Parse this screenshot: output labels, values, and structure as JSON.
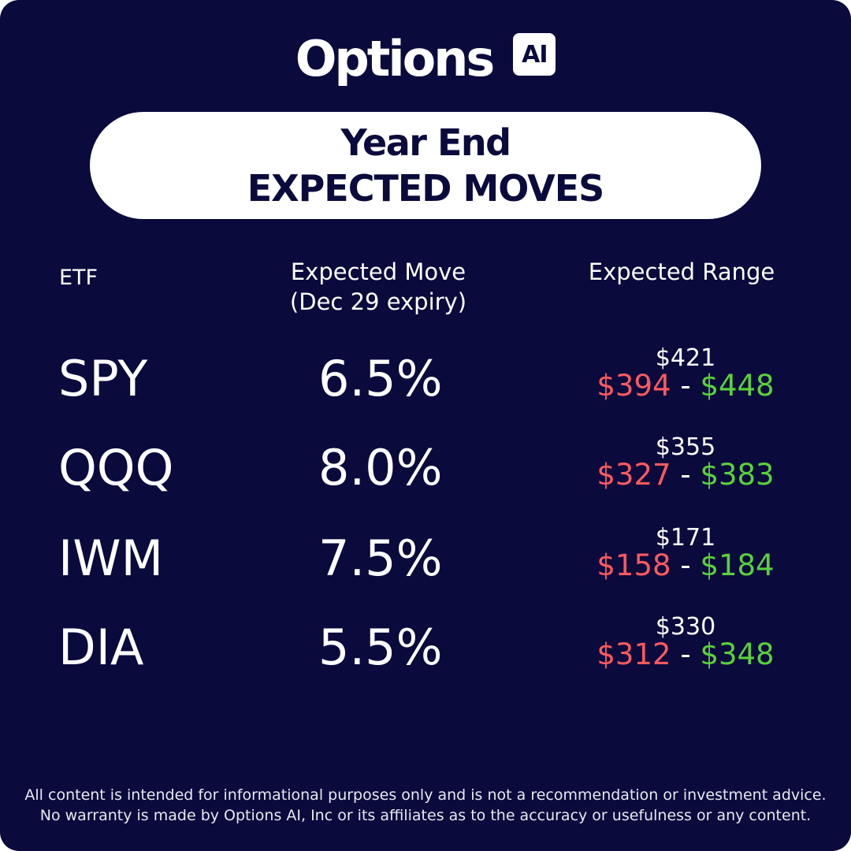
{
  "brand": {
    "logo_word": "Options",
    "logo_badge": "AI"
  },
  "title": {
    "line1": "Year End",
    "line2": "EXPECTED MOVES"
  },
  "headers": {
    "etf": "ETF",
    "move_line1": "Expected Move",
    "move_line2": "(Dec 29 expiry)",
    "range": "Expected Range"
  },
  "rows": [
    {
      "ticker": "SPY",
      "move": "6.5%",
      "price": "$421",
      "low": "$394",
      "sep": "-",
      "high": "$448"
    },
    {
      "ticker": "QQQ",
      "move": "8.0%",
      "price": "$355",
      "low": "$327",
      "sep": "-",
      "high": "$383"
    },
    {
      "ticker": "IWM",
      "move": "7.5%",
      "price": "$171",
      "low": "$158",
      "sep": "-",
      "high": "$184"
    },
    {
      "ticker": "DIA",
      "move": "5.5%",
      "price": "$330",
      "low": "$312",
      "sep": "-",
      "high": "$348"
    }
  ],
  "disclaimer": {
    "line1": "All content is intended for informational purposes only and is not a recommendation or investment advice.",
    "line2": "No warranty is made by Options AI, Inc or its affiliates as to the accuracy or usefulness or any content."
  },
  "colors": {
    "background": "#0a0a3d",
    "low": "#ff5a5f",
    "high": "#5ad13a",
    "text": "#ffffff"
  }
}
